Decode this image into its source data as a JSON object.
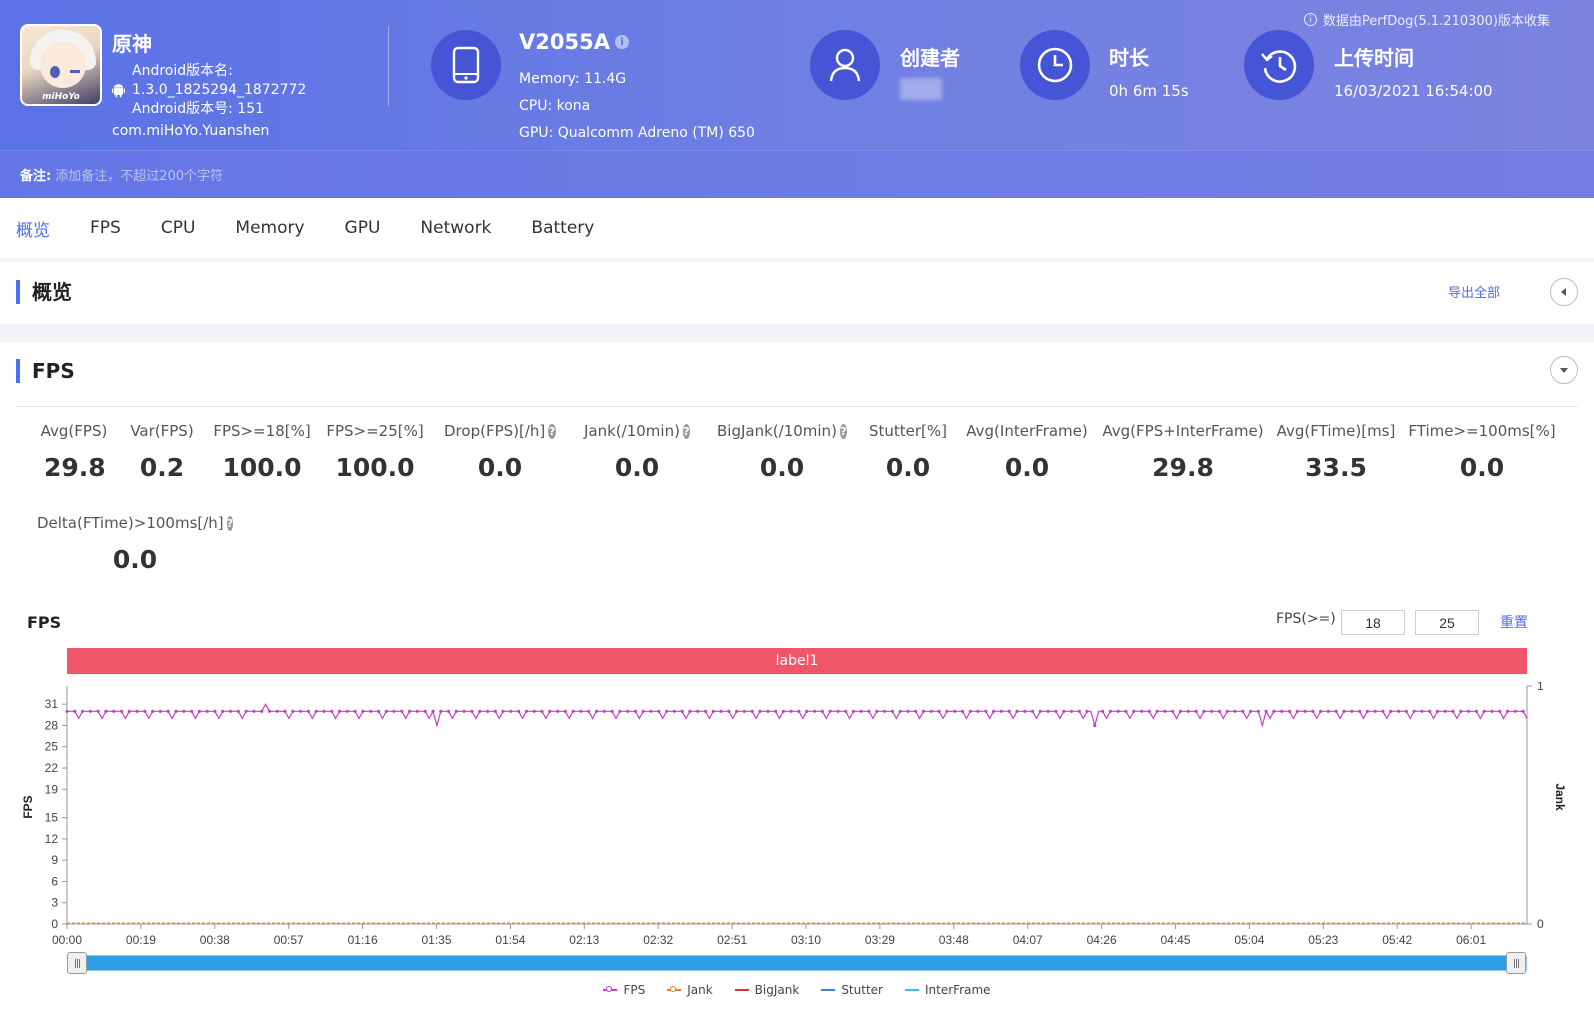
{
  "header": {
    "notice": "数据由PerfDog(5.1.210300)版本收集",
    "app": {
      "name": "原神",
      "icon_brand": "miHoYo",
      "version_name_label": "Android版本名:",
      "version_name": "1.3.0_1825294_1872772",
      "version_code": "Android版本号: 151",
      "package": "com.miHoYo.Yuanshen"
    },
    "device": {
      "name": "V2055A",
      "memory": "Memory: 11.4G",
      "cpu": "CPU: kona",
      "gpu": "GPU: Qualcomm Adreno (TM) 650"
    },
    "creator": {
      "title": "创建者",
      "value": ""
    },
    "duration": {
      "title": "时长",
      "value": "0h 6m 15s"
    },
    "upload": {
      "title": "上传时间",
      "value": "16/03/2021 16:54:00"
    },
    "note": {
      "label": "备注:",
      "placeholder": "添加备注，不超过200个字符"
    }
  },
  "tabs": [
    "概览",
    "FPS",
    "CPU",
    "Memory",
    "GPU",
    "Network",
    "Battery"
  ],
  "overview": {
    "title": "概览",
    "export": "导出全部"
  },
  "fps_section": {
    "title": "FPS",
    "stats": [
      {
        "label": "Avg(FPS)",
        "value": "29.8",
        "help": false
      },
      {
        "label": "Var(FPS)",
        "value": "0.2",
        "help": false
      },
      {
        "label": "FPS>=18[%]",
        "value": "100.0",
        "help": false
      },
      {
        "label": "FPS>=25[%]",
        "value": "100.0",
        "help": false
      },
      {
        "label": "Drop(FPS)[/h]",
        "value": "0.0",
        "help": true
      },
      {
        "label": "Jank(/10min)",
        "value": "0.0",
        "help": true
      },
      {
        "label": "BigJank(/10min)",
        "value": "0.0",
        "help": true
      },
      {
        "label": "Stutter[%]",
        "value": "0.0",
        "help": false
      },
      {
        "label": "Avg(InterFrame)",
        "value": "0.0",
        "help": false
      },
      {
        "label": "Avg(FPS+InterFrame)",
        "value": "29.8",
        "help": false
      },
      {
        "label": "Avg(FTime)[ms]",
        "value": "33.5",
        "help": false
      },
      {
        "label": "FTime>=100ms[%]",
        "value": "0.0",
        "help": false
      },
      {
        "label": "Delta(FTime)>100ms[/h]",
        "value": "0.0",
        "help": true
      }
    ],
    "chart_title": "FPS",
    "filter_label": "FPS(>=)",
    "threshold1": "18",
    "threshold2": "25",
    "reset": "重置",
    "label_bar": "label1"
  },
  "colors": {
    "accent": "#4e6ef2",
    "fps_line": "#c63fc6",
    "label_bar": "#ef5667",
    "jank": "#f07c2a",
    "bigjank": "#d9343a",
    "stutter": "#3e82e0",
    "interframe": "#3bbbe8"
  },
  "chart_data": {
    "type": "line",
    "title": "FPS",
    "ylabel": "FPS",
    "y2label": "Jank",
    "yticks": [
      0,
      3,
      6,
      9,
      12,
      15,
      19,
      22,
      25,
      28,
      31
    ],
    "y2ticks": [
      0,
      1
    ],
    "ylim": [
      0,
      33
    ],
    "xlim_seconds": [
      0,
      375
    ],
    "xticks": [
      "00:00",
      "00:19",
      "00:38",
      "00:57",
      "01:16",
      "01:35",
      "01:54",
      "02:13",
      "02:32",
      "02:51",
      "03:10",
      "03:29",
      "03:48",
      "04:07",
      "04:26",
      "04:45",
      "05:04",
      "05:23",
      "05:42",
      "06:01"
    ],
    "legend": [
      "FPS",
      "Jank",
      "BigJank",
      "Stutter",
      "InterFrame"
    ],
    "series": [
      {
        "name": "FPS",
        "baseline": 30,
        "dip_value": 29,
        "dip_every_seconds": 6,
        "spikes": [
          {
            "t": 51,
            "v": 31
          }
        ],
        "drops": [
          {
            "t": 95,
            "v": 28
          },
          {
            "t": 264,
            "v": 28
          },
          {
            "t": 307,
            "v": 28
          }
        ],
        "last_t": 375
      },
      {
        "name": "Jank",
        "values": "all 0"
      },
      {
        "name": "BigJank",
        "values": "all 0"
      },
      {
        "name": "Stutter",
        "values": "all 0"
      },
      {
        "name": "InterFrame",
        "values": "all 0"
      }
    ]
  }
}
